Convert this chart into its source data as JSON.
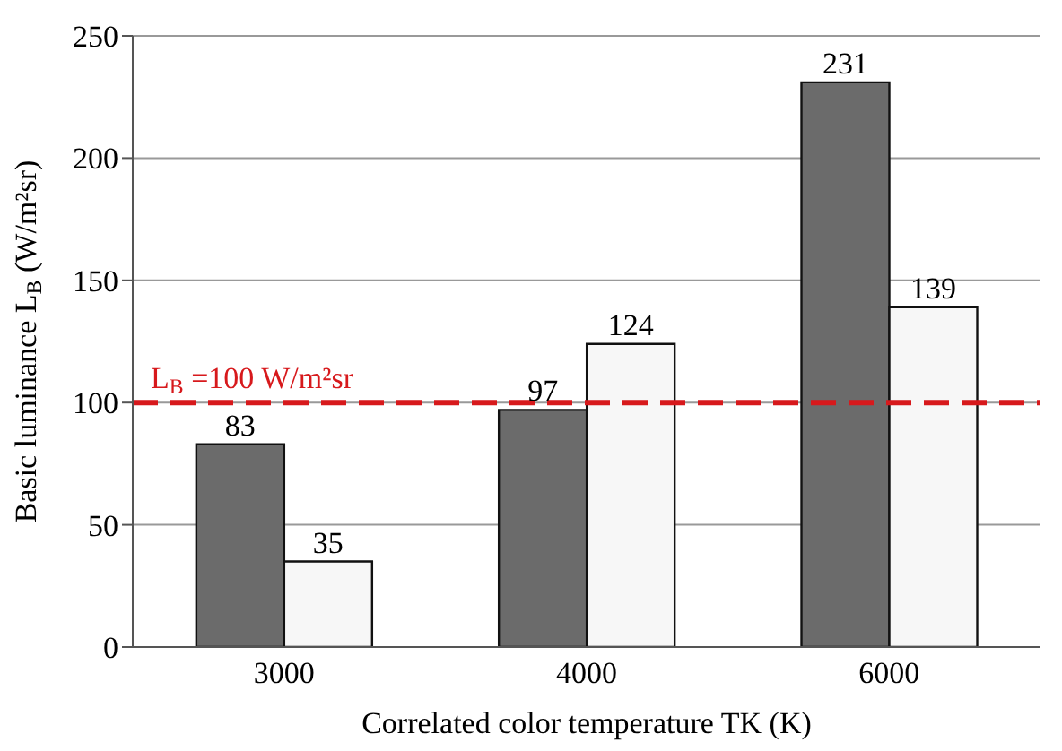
{
  "chart_data": {
    "type": "bar",
    "xlabel": "Correlated color temperature TK (K)",
    "ylabel": "Basic luminance L$_{B}$ (W/m²sr)",
    "categories": [
      "3000",
      "4000",
      "6000"
    ],
    "series": [
      {
        "color": "#6b6b6b",
        "values": [
          83,
          97,
          231
        ]
      },
      {
        "color": "#f7f7f7",
        "values": [
          35,
          124,
          139
        ]
      }
    ],
    "ylim": [
      0,
      250
    ],
    "yticks": [
      0,
      50,
      100,
      150,
      200,
      250
    ],
    "grid": "y",
    "data_labels": true,
    "ref_lines": [
      {
        "axis": "y",
        "value": 100,
        "label": "L$_{B}$ =100 W/m²sr",
        "color": "#d7191c",
        "line_style": "dashed"
      }
    ]
  }
}
